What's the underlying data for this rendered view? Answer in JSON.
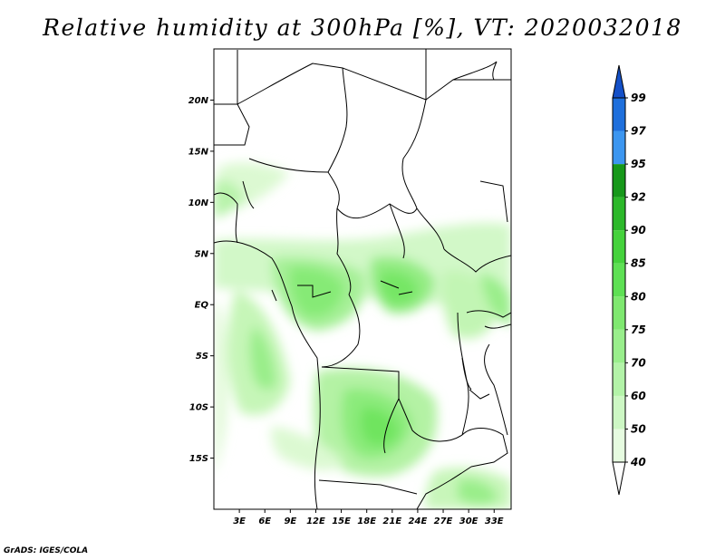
{
  "title": "Relative humidity at 300hPa [%], VT: 2020032018",
  "credit": "GrADS: IGES/COLA",
  "map": {
    "lon_range": [
      0,
      35
    ],
    "lat_range": [
      -20,
      25
    ],
    "lat_ticks": [
      {
        "value": 20,
        "label": "20N"
      },
      {
        "value": 15,
        "label": "15N"
      },
      {
        "value": 10,
        "label": "10N"
      },
      {
        "value": 5,
        "label": "5N"
      },
      {
        "value": 0,
        "label": "EQ"
      },
      {
        "value": -5,
        "label": "5S"
      },
      {
        "value": -10,
        "label": "10S"
      },
      {
        "value": -15,
        "label": "15S"
      }
    ],
    "lon_ticks": [
      {
        "value": 3,
        "label": "3E"
      },
      {
        "value": 6,
        "label": "6E"
      },
      {
        "value": 9,
        "label": "9E"
      },
      {
        "value": 12,
        "label": "12E"
      },
      {
        "value": 15,
        "label": "15E"
      },
      {
        "value": 18,
        "label": "18E"
      },
      {
        "value": 21,
        "label": "21E"
      },
      {
        "value": 24,
        "label": "24E"
      },
      {
        "value": 27,
        "label": "27E"
      },
      {
        "value": 30,
        "label": "30E"
      },
      {
        "value": 33,
        "label": "33E"
      }
    ]
  },
  "colorbar": {
    "levels": [
      "40",
      "50",
      "60",
      "70",
      "75",
      "80",
      "85",
      "90",
      "92",
      "95",
      "97",
      "99"
    ],
    "colors": [
      "#ffffff",
      "#e6fbe0",
      "#cdf7c4",
      "#b3f3a8",
      "#99ee8c",
      "#7fe870",
      "#5ee054",
      "#45d23c",
      "#2cb82a",
      "#16981a",
      "#3c96f0",
      "#1e6fdc",
      "#1450c8"
    ]
  }
}
